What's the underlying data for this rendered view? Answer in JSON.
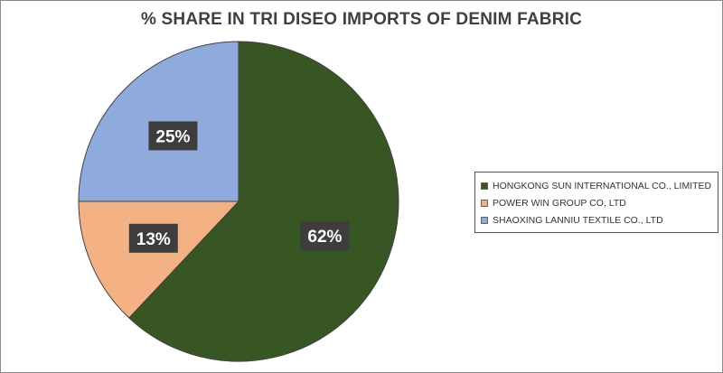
{
  "chart_data": {
    "type": "pie",
    "title": "% SHARE IN TRI DISEO IMPORTS OF DENIM FABRIC",
    "categories": [
      "HONGKONG SUN INTERNATIONAL CO., LIMITED",
      "POWER WIN GROUP CO, LTD",
      "SHAOXING LANNIU TEXTILE CO., LTD"
    ],
    "values": [
      62,
      13,
      25
    ],
    "data_labels": [
      "62%",
      "13%",
      "25%"
    ],
    "colors": [
      "#375623",
      "#F4B183",
      "#8FAADC"
    ],
    "legend_position": "right"
  }
}
